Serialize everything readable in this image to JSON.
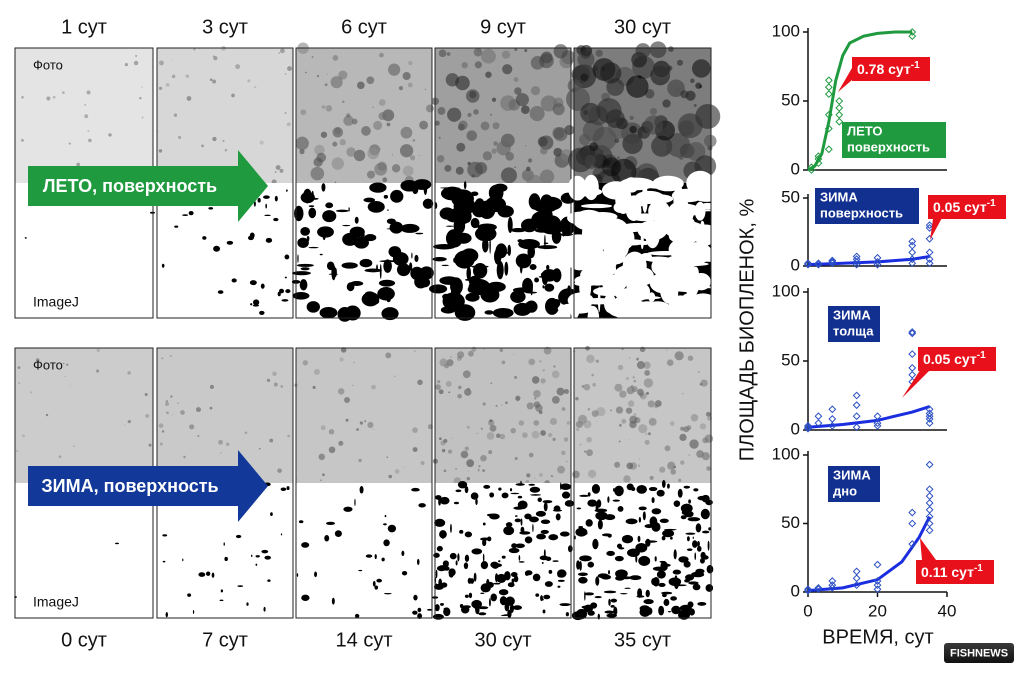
{
  "panels": {
    "column_headers_top": [
      "1 сут",
      "3 сут",
      "6 сут",
      "9 сут",
      "30 сут"
    ],
    "column_headers_bottom": [
      "0 сут",
      "7 сут",
      "14 сут",
      "30 сут",
      "35 сут"
    ],
    "rows": [
      {
        "arrow": "ЛЕТО, поверхность",
        "photo_label": "Фото",
        "imagej_label": "ImageJ"
      },
      {
        "arrow": "ЗИМА, поверхность",
        "photo_label": "Фото",
        "imagej_label": "ImageJ"
      }
    ]
  },
  "shared_ylabel": "ПЛОЩАДЬ БИОПЛЕНОК, %",
  "logo": "FISHNEWS",
  "chart_data": [
    {
      "type": "scatter",
      "label": [
        "ЛЕТО",
        "поверхность"
      ],
      "color": "#1f9a3f",
      "label_color": "#1f9a3f",
      "annotation": {
        "text": "0.78 сут",
        "sup": "-1"
      },
      "xlim": [
        0,
        40
      ],
      "ylim": [
        0,
        100
      ],
      "yticks": [
        0,
        50,
        100
      ],
      "points": {
        "x": [
          1,
          1,
          3,
          3,
          3,
          6,
          6,
          6,
          6,
          6,
          6,
          9,
          9,
          9,
          9,
          30,
          30
        ],
        "values": [
          0,
          2,
          5,
          8,
          10,
          15,
          30,
          40,
          55,
          60,
          65,
          35,
          40,
          45,
          50,
          97,
          100
        ]
      },
      "curve": {
        "x": [
          0,
          2,
          4,
          6,
          8,
          10,
          12,
          16,
          20,
          25,
          30
        ],
        "values": [
          0,
          3,
          12,
          35,
          65,
          83,
          92,
          97,
          99,
          100,
          100
        ]
      }
    },
    {
      "type": "scatter",
      "label": [
        "ЗИМА",
        "поверхность"
      ],
      "color": "#2a4fc4",
      "label_color": "#12308f",
      "annotation": {
        "text": "0.05 сут",
        "sup": "-1"
      },
      "xlim": [
        0,
        40
      ],
      "ylim": [
        0,
        50
      ],
      "yticks": [
        0,
        50
      ],
      "points": {
        "x": [
          0,
          0,
          3,
          3,
          7,
          7,
          7,
          14,
          14,
          14,
          14,
          20,
          20,
          20,
          30,
          30,
          30,
          30,
          30,
          35,
          35,
          35,
          35,
          35,
          35
        ],
        "values": [
          1,
          2,
          1,
          2,
          2,
          3,
          4,
          1,
          3,
          5,
          7,
          1,
          3,
          6,
          2,
          5,
          10,
          15,
          18,
          2,
          5,
          10,
          20,
          28,
          30
        ]
      },
      "curve": {
        "x": [
          0,
          10,
          20,
          30,
          35
        ],
        "values": [
          1,
          2,
          3,
          5,
          7
        ]
      }
    },
    {
      "type": "scatter",
      "label": [
        "ЗИМА",
        "толща"
      ],
      "color": "#2a4fc4",
      "label_color": "#12308f",
      "annotation": {
        "text": "0.05 сут",
        "sup": "-1"
      },
      "xlim": [
        0,
        40
      ],
      "ylim": [
        0,
        100
      ],
      "yticks": [
        0,
        50,
        100
      ],
      "points": {
        "x": [
          0,
          0,
          0,
          3,
          3,
          7,
          7,
          7,
          14,
          14,
          14,
          14,
          20,
          20,
          20,
          30,
          30,
          30,
          30,
          30,
          30,
          35,
          35,
          35,
          35,
          35
        ],
        "values": [
          1,
          2,
          3,
          5,
          10,
          3,
          8,
          15,
          2,
          10,
          18,
          25,
          3,
          5,
          10,
          35,
          40,
          45,
          55,
          70,
          71,
          5,
          8,
          10,
          12,
          15
        ]
      },
      "curve": {
        "x": [
          0,
          10,
          20,
          30,
          35
        ],
        "values": [
          2,
          4,
          7,
          13,
          17
        ]
      }
    },
    {
      "type": "scatter",
      "label": [
        "ЗИМА",
        "дно"
      ],
      "color": "#2a4fc4",
      "label_color": "#12308f",
      "annotation": {
        "text": "0.11 сут",
        "sup": "-1"
      },
      "xlim": [
        0,
        40
      ],
      "ylim": [
        0,
        100
      ],
      "yticks": [
        0,
        50,
        100
      ],
      "xticks": [
        0,
        20,
        40
      ],
      "xlabel": "ВРЕМЯ, сут",
      "points": {
        "x": [
          0,
          0,
          3,
          3,
          7,
          7,
          7,
          14,
          14,
          14,
          20,
          20,
          20,
          20,
          30,
          30,
          30,
          35,
          35,
          35,
          35,
          35,
          35,
          35,
          35
        ],
        "values": [
          1,
          2,
          2,
          3,
          3,
          5,
          8,
          5,
          10,
          15,
          2,
          5,
          8,
          20,
          35,
          50,
          58,
          45,
          50,
          55,
          60,
          65,
          70,
          75,
          93
        ]
      },
      "curve": {
        "x": [
          0,
          10,
          20,
          27,
          32,
          35
        ],
        "values": [
          1,
          3,
          9,
          22,
          40,
          55
        ]
      }
    }
  ]
}
